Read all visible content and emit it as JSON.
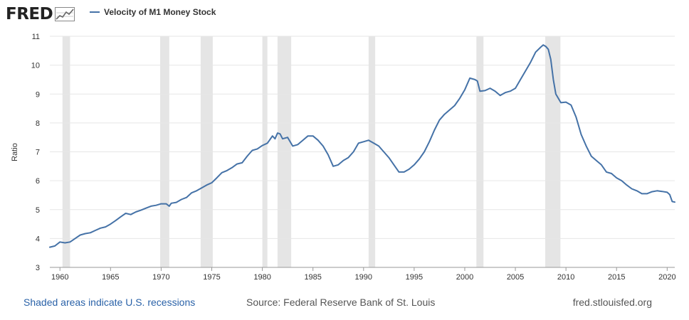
{
  "brand": {
    "logo_text": "FRED",
    "logo_icon": "chart-line-icon"
  },
  "colors": {
    "line": "#4572a7",
    "recession": "#e5e5e5",
    "grid": "#e6e6e6",
    "link": "#2a62a8"
  },
  "footer": {
    "recession_note": "Shaded areas indicate U.S. recessions",
    "source": "Source: Federal Reserve Bank of St. Louis",
    "site": "fred.stlouisfed.org"
  },
  "chart_data": {
    "type": "line",
    "title": "",
    "xlabel": "",
    "ylabel": "Ratio",
    "xlim": [
      1959.0,
      2020.75
    ],
    "ylim": [
      3,
      11
    ],
    "x_ticks": [
      1960,
      1965,
      1970,
      1975,
      1980,
      1985,
      1990,
      1995,
      2000,
      2005,
      2010,
      2015,
      2020
    ],
    "y_ticks": [
      3,
      4,
      5,
      6,
      7,
      8,
      9,
      10,
      11
    ],
    "grid": true,
    "legend_position": "top-left",
    "recessions": [
      [
        1960.25,
        1961.0
      ],
      [
        1969.9,
        1970.8
      ],
      [
        1973.9,
        1975.1
      ],
      [
        1980.0,
        1980.5
      ],
      [
        1981.5,
        1982.85
      ],
      [
        1990.5,
        1991.15
      ],
      [
        2001.15,
        2001.85
      ],
      [
        2007.95,
        2009.45
      ]
    ],
    "series": [
      {
        "name": "Velocity of M1 Money Stock",
        "x": [
          1959.0,
          1959.5,
          1960.0,
          1960.5,
          1961.0,
          1961.5,
          1962.0,
          1962.5,
          1963.0,
          1963.5,
          1964.0,
          1964.5,
          1965.0,
          1965.5,
          1966.0,
          1966.5,
          1967.0,
          1967.5,
          1968.0,
          1968.5,
          1969.0,
          1969.5,
          1970.0,
          1970.5,
          1970.8,
          1971.0,
          1971.5,
          1972.0,
          1972.5,
          1973.0,
          1973.5,
          1974.0,
          1974.5,
          1975.0,
          1975.5,
          1976.0,
          1976.5,
          1977.0,
          1977.5,
          1978.0,
          1978.5,
          1979.0,
          1979.5,
          1980.0,
          1980.5,
          1981.0,
          1981.25,
          1981.5,
          1981.75,
          1982.0,
          1982.5,
          1983.0,
          1983.5,
          1984.0,
          1984.5,
          1985.0,
          1985.5,
          1986.0,
          1986.5,
          1987.0,
          1987.5,
          1988.0,
          1988.5,
          1989.0,
          1989.5,
          1990.0,
          1990.5,
          1991.0,
          1991.5,
          1992.0,
          1992.5,
          1993.0,
          1993.5,
          1994.0,
          1994.5,
          1995.0,
          1995.5,
          1996.0,
          1996.5,
          1997.0,
          1997.5,
          1998.0,
          1998.5,
          1999.0,
          1999.5,
          2000.0,
          2000.5,
          2001.0,
          2001.25,
          2001.5,
          2002.0,
          2002.5,
          2003.0,
          2003.5,
          2004.0,
          2004.5,
          2005.0,
          2005.5,
          2006.0,
          2006.5,
          2007.0,
          2007.5,
          2007.75,
          2008.0,
          2008.25,
          2008.5,
          2008.75,
          2009.0,
          2009.5,
          2010.0,
          2010.5,
          2011.0,
          2011.5,
          2012.0,
          2012.5,
          2013.0,
          2013.5,
          2014.0,
          2014.5,
          2015.0,
          2015.5,
          2016.0,
          2016.5,
          2017.0,
          2017.5,
          2018.0,
          2018.5,
          2019.0,
          2019.5,
          2020.0,
          2020.25,
          2020.5,
          2020.75
        ],
        "values": [
          3.7,
          3.74,
          3.88,
          3.85,
          3.88,
          4.0,
          4.12,
          4.17,
          4.2,
          4.28,
          4.36,
          4.4,
          4.5,
          4.62,
          4.75,
          4.87,
          4.83,
          4.92,
          4.98,
          5.05,
          5.12,
          5.15,
          5.2,
          5.2,
          5.12,
          5.22,
          5.25,
          5.35,
          5.42,
          5.58,
          5.65,
          5.75,
          5.85,
          5.93,
          6.1,
          6.28,
          6.35,
          6.45,
          6.58,
          6.62,
          6.85,
          7.05,
          7.1,
          7.22,
          7.3,
          7.55,
          7.45,
          7.65,
          7.62,
          7.45,
          7.5,
          7.2,
          7.25,
          7.4,
          7.55,
          7.55,
          7.4,
          7.2,
          6.9,
          6.5,
          6.55,
          6.7,
          6.8,
          7.0,
          7.3,
          7.35,
          7.4,
          7.3,
          7.2,
          7.0,
          6.8,
          6.55,
          6.3,
          6.3,
          6.4,
          6.55,
          6.75,
          7.0,
          7.35,
          7.75,
          8.1,
          8.3,
          8.45,
          8.6,
          8.85,
          9.15,
          9.55,
          9.5,
          9.45,
          9.1,
          9.12,
          9.2,
          9.1,
          8.95,
          9.05,
          9.1,
          9.2,
          9.5,
          9.8,
          10.1,
          10.45,
          10.62,
          10.7,
          10.65,
          10.55,
          10.2,
          9.5,
          9.0,
          8.7,
          8.72,
          8.62,
          8.2,
          7.6,
          7.2,
          6.85,
          6.7,
          6.55,
          6.3,
          6.25,
          6.1,
          6.0,
          5.85,
          5.72,
          5.65,
          5.55,
          5.55,
          5.62,
          5.65,
          5.63,
          5.6,
          5.52,
          5.28,
          5.26
        ]
      }
    ]
  }
}
